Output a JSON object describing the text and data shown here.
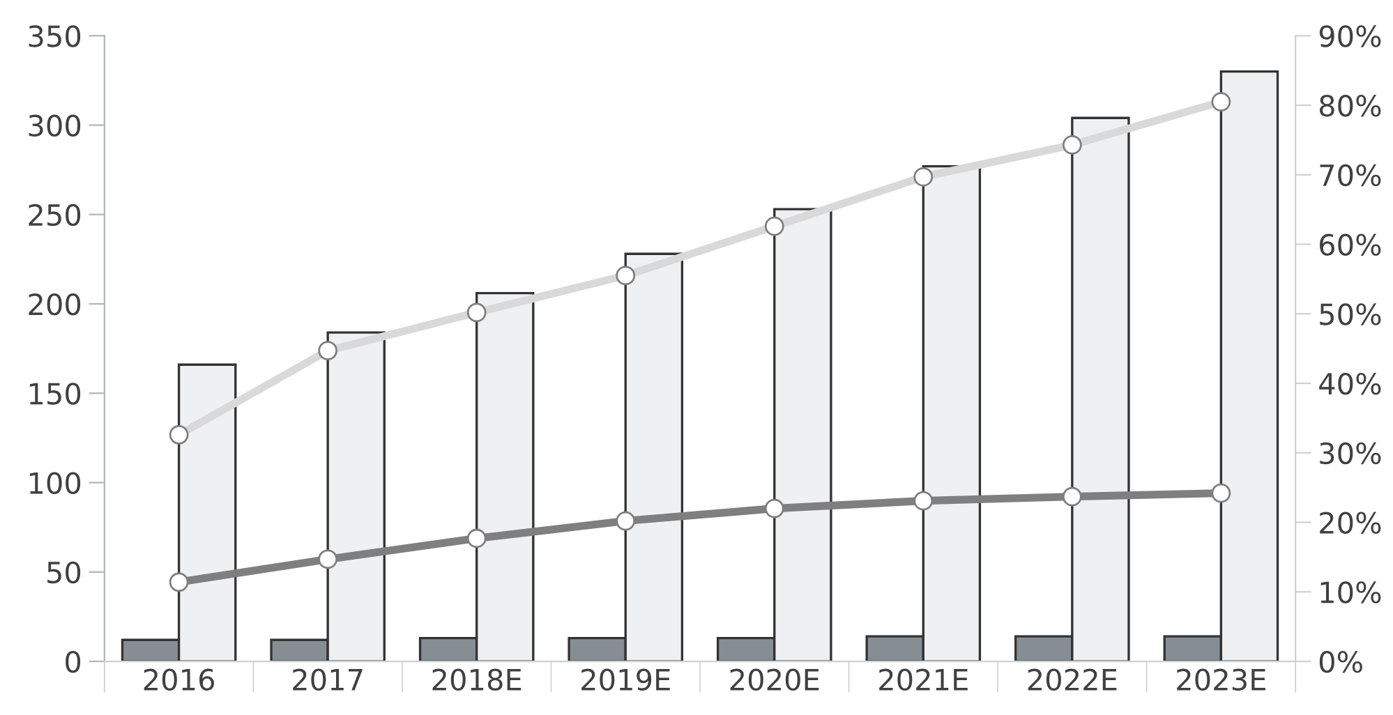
{
  "chart_data": {
    "type": "bar",
    "categories": [
      "2016",
      "2017",
      "2018E",
      "2019E",
      "2020E",
      "2021E",
      "2022E",
      "2023E"
    ],
    "series": [
      {
        "color": "#878e93",
        "values": [
          12,
          12,
          13,
          13,
          13,
          14,
          14,
          14
        ]
      },
      {
        "color": "#eef0f2",
        "values": [
          166,
          184,
          206,
          228,
          253,
          277,
          304,
          330
        ]
      },
      {
        "type": "line",
        "axis": "y2",
        "color": "#d9d9d9",
        "values": [
          32.6,
          44.7,
          50.2,
          55.5,
          62.6,
          69.7,
          74.3,
          80.5
        ]
      },
      {
        "type": "line",
        "axis": "y2",
        "color": "#7f7f7f",
        "values": [
          11.4,
          14.7,
          17.7,
          20.2,
          22.0,
          23.1,
          23.7,
          24.2
        ]
      }
    ],
    "ylim": [
      0,
      350
    ],
    "yticks": [
      0,
      50,
      100,
      150,
      200,
      250,
      300,
      350
    ],
    "y2lim": [
      0,
      90
    ],
    "y2ticks": [
      {
        "value": 0,
        "label": "0%"
      },
      {
        "value": 10,
        "label": "10%"
      },
      {
        "value": 20,
        "label": "20%"
      },
      {
        "value": 30,
        "label": "30%"
      },
      {
        "value": 40,
        "label": "40%"
      },
      {
        "value": 50,
        "label": "50%"
      },
      {
        "value": 60,
        "label": "60%"
      },
      {
        "value": 70,
        "label": "70%"
      },
      {
        "value": 80,
        "label": "80%"
      },
      {
        "value": 90,
        "label": "90%"
      }
    ],
    "marker": "circle",
    "grid": false,
    "legend": false
  }
}
